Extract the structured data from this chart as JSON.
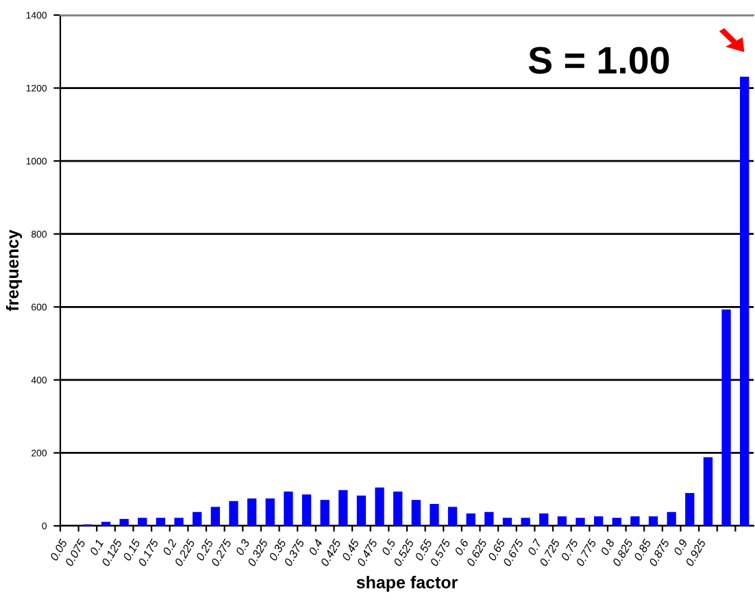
{
  "chart_data": {
    "type": "bar",
    "xlabel": "shape factor",
    "ylabel": "frequency",
    "categories": [
      "0.05",
      "0.075",
      "0.1",
      "0.125",
      "0.15",
      "0.175",
      "0.2",
      "0.225",
      "0.25",
      "0.275",
      "0.3",
      "0.325",
      "0.35",
      "0.375",
      "0.4",
      "0.425",
      "0.45",
      "0.475",
      "0.5",
      "0.525",
      "0.55",
      "0.575",
      "0.6",
      "0.625",
      "0.65",
      "0.675",
      "0.7",
      "0.725",
      "0.75",
      "0.775",
      "0.8",
      "0.825",
      "0.85",
      "0.875",
      "0.9",
      "0.925",
      null,
      null
    ],
    "values": [
      0,
      4,
      11,
      19,
      22,
      22,
      22,
      38,
      52,
      68,
      75,
      75,
      94,
      86,
      71,
      98,
      83,
      105,
      94,
      71,
      60,
      52,
      34,
      38,
      22,
      22,
      34,
      26,
      22,
      26,
      22,
      26,
      26,
      38,
      90,
      188,
      593,
      1231
    ],
    "color": "#0000ff",
    "ylim": [
      0,
      1400
    ],
    "yticks": [
      0,
      200,
      400,
      600,
      800,
      1000,
      1200,
      1400
    ],
    "grid": "y",
    "annotations": [
      "S = 1.00"
    ]
  }
}
